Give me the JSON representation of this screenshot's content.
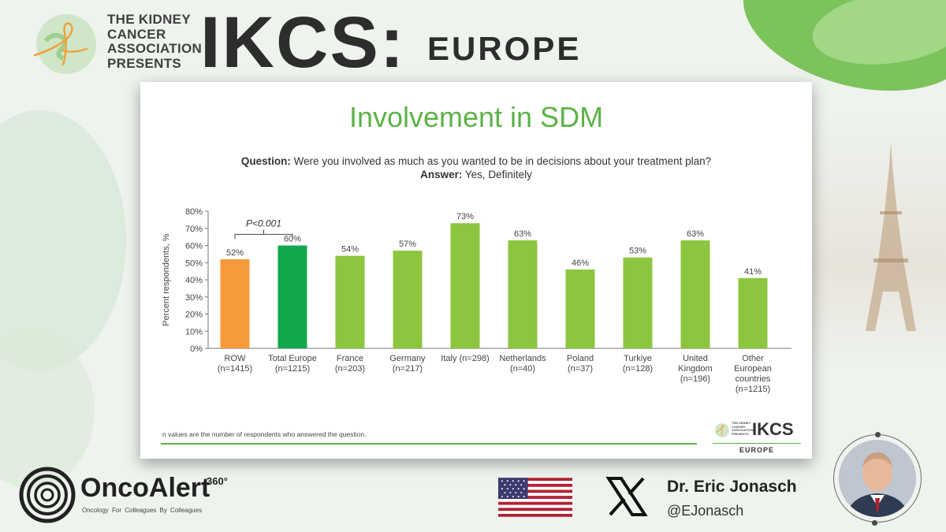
{
  "header": {
    "kca_lines": [
      "THE KIDNEY",
      "CANCER",
      "ASSOCIATION",
      "PRESENTS"
    ],
    "ikcs": "IKCS:",
    "europe": "EUROPE"
  },
  "slide": {
    "title": "Involvement in SDM",
    "question_label": "Question:",
    "question_text": "Were you involved as much as you wanted to be in decisions about your treatment plan?",
    "answer_label": "Answer:",
    "answer_text": "Yes, Definitely",
    "footnote": "n values are the number of respondents who answered the question.",
    "logo_small_text": [
      "THE KIDNEY",
      "CANCER",
      "ASSOCIATION",
      "PRESENTS"
    ],
    "logo_ikcs": "IKCS",
    "logo_europe": "EUROPE"
  },
  "chart_data": {
    "type": "bar",
    "title": "",
    "ylabel": "Percent respondents, %",
    "ylim": [
      0,
      80
    ],
    "yticks": [
      "0%",
      "10%",
      "20%",
      "30%",
      "40%",
      "50%",
      "60%",
      "70%",
      "80%"
    ],
    "categories": [
      [
        "ROW",
        "(n=1415)"
      ],
      [
        "Total Europe",
        "(n=1215)"
      ],
      [
        "France",
        "(n=203)"
      ],
      [
        "Germany",
        "(n=217)"
      ],
      [
        "Italy (n=298)"
      ],
      [
        "Netherlands",
        "(n=40)"
      ],
      [
        "Poland",
        "(n=37)"
      ],
      [
        "Turkiye",
        "(n=128)"
      ],
      [
        "United",
        "Kingdom",
        "(n=196)"
      ],
      [
        "Other",
        "European",
        "countries",
        "(n=1215)"
      ]
    ],
    "values": [
      52,
      60,
      54,
      57,
      73,
      63,
      46,
      53,
      63,
      41
    ],
    "value_labels": [
      "52%",
      "60%",
      "54%",
      "57%",
      "73%",
      "63%",
      "46%",
      "53%",
      "63%",
      "41%"
    ],
    "bar_colors": [
      "#f79a3c",
      "#12a84b",
      "#8cc63f",
      "#8cc63f",
      "#8cc63f",
      "#8cc63f",
      "#8cc63f",
      "#8cc63f",
      "#8cc63f",
      "#8cc63f"
    ],
    "annotation": "P<0.001",
    "grid": false
  },
  "footer": {
    "onco_name": "OncoAlert",
    "onco_sup": "360°",
    "onco_tagline": "Oncology   For Colleagues   By Colleagues",
    "doctor_name": "Dr. Eric Jonasch",
    "doctor_handle": "@EJonasch"
  },
  "colors": {
    "title_green": "#5cb347",
    "bar_orange": "#f79a3c",
    "bar_dark_green": "#12a84b",
    "bar_green": "#8cc63f"
  }
}
